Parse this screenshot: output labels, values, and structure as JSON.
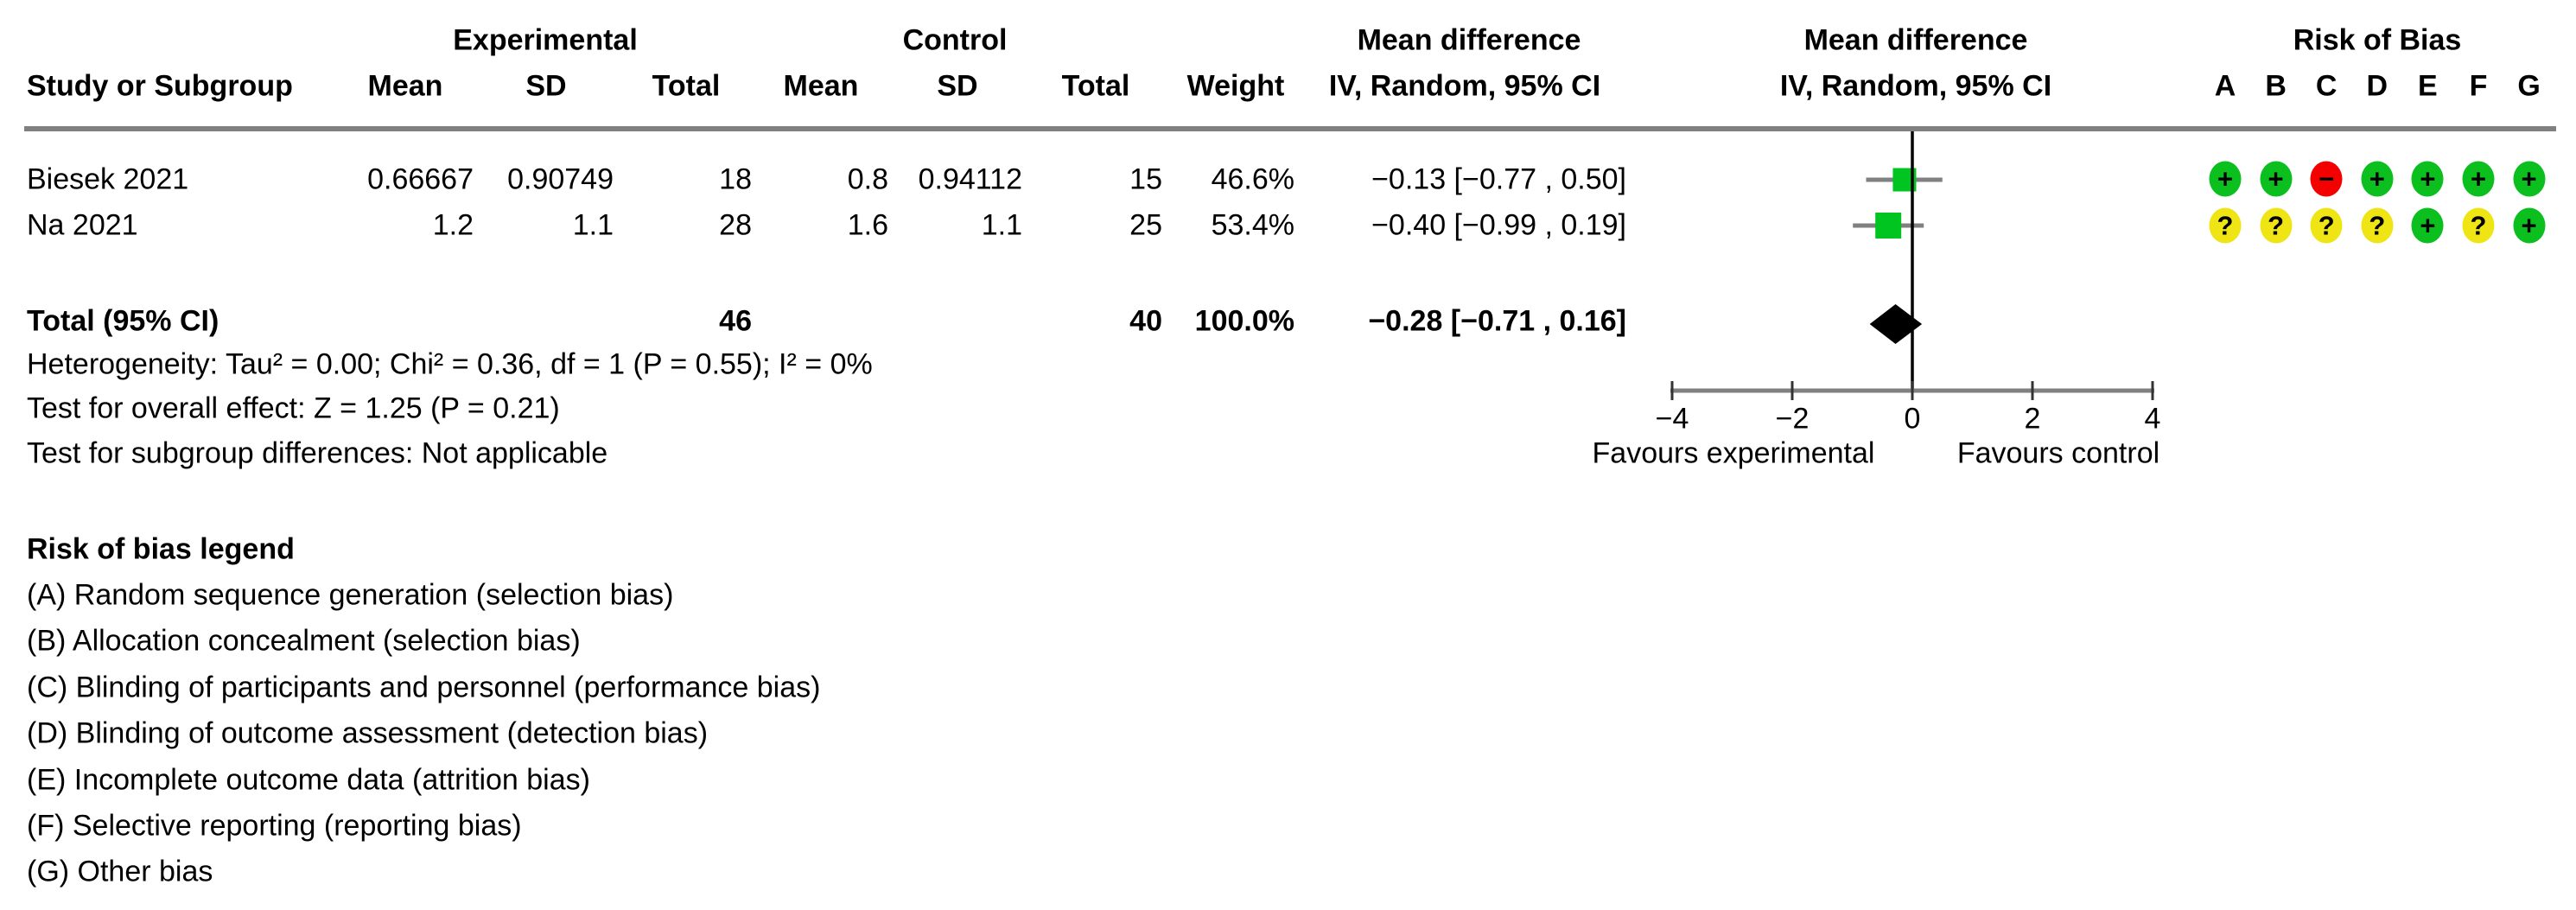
{
  "colors": {
    "square_green": "#00c420",
    "rob_green": "#0abf1e",
    "rob_yellow": "#efe414",
    "rob_red": "#f40000",
    "gray_line": "#808080",
    "tick_dark": "#333333",
    "black": "#000000"
  },
  "header": {
    "experimental": "Experimental",
    "control": "Control",
    "md_text_col": "Mean difference",
    "md_plot_col": "Mean difference",
    "rob_title": "Risk of Bias",
    "study": "Study or Subgroup",
    "mean_exp": "Mean",
    "sd_exp": "SD",
    "total_exp": "Total",
    "mean_ctrl": "Mean",
    "sd_ctrl": "SD",
    "total_ctrl": "Total",
    "weight": "Weight",
    "iv_text_col": "IV, Random, 95% CI",
    "iv_plot_col": "IV, Random, 95% CI",
    "rob_letters": [
      "A",
      "B",
      "C",
      "D",
      "E",
      "F",
      "G"
    ]
  },
  "studies": [
    {
      "name": "Biesek 2021",
      "exp_mean": "0.66667",
      "exp_sd": "0.90749",
      "exp_total": "18",
      "ctrl_mean": "0.8",
      "ctrl_sd": "0.94112",
      "ctrl_total": "15",
      "weight": "46.6%",
      "ci_text": "−0.13 [−0.77 , 0.50]",
      "rob": [
        "+",
        "+",
        "−",
        "+",
        "+",
        "+",
        "+"
      ]
    },
    {
      "name": "Na 2021",
      "exp_mean": "1.2",
      "exp_sd": "1.1",
      "exp_total": "28",
      "ctrl_mean": "1.6",
      "ctrl_sd": "1.1",
      "ctrl_total": "25",
      "weight": "53.4%",
      "ci_text": "−0.40 [−0.99 , 0.19]",
      "rob": [
        "?",
        "?",
        "?",
        "?",
        "+",
        "?",
        "+"
      ]
    }
  ],
  "total_row": {
    "label": "Total (95% CI)",
    "exp_total": "46",
    "ctrl_total": "40",
    "weight": "100.0%",
    "ci_text": "−0.28 [−0.71 , 0.16]"
  },
  "stats": {
    "heterogeneity": "Heterogeneity: Tau² = 0.00; Chi² = 0.36, df = 1 (P = 0.55); I² = 0%",
    "overall_effect": "Test for overall effect: Z = 1.25 (P = 0.21)",
    "subgroup": "Test for subgroup differences: Not applicable"
  },
  "axis": {
    "tick_labels": [
      "−4",
      "−2",
      "0",
      "2",
      "4"
    ],
    "favours_left": "Favours experimental",
    "favours_right": "Favours control"
  },
  "legend": {
    "title": "Risk of bias legend",
    "lines": [
      "(A) Random sequence generation (selection bias)",
      "(B) Allocation concealment (selection bias)",
      "(C) Blinding of participants and personnel (performance bias)",
      "(D) Blinding of outcome assessment (detection bias)",
      "(E) Incomplete outcome data (attrition bias)",
      "(F) Selective reporting (reporting bias)",
      "(G) Other bias"
    ]
  },
  "chart_data": {
    "type": "forest",
    "title": "Mean difference, IV, Random, 95% CI",
    "effect_measure": "Mean difference",
    "model": "IV, Random, 95% CI",
    "xlim": [
      -4,
      4
    ],
    "x_ticks": [
      -4,
      -2,
      0,
      2,
      4
    ],
    "xlabel_left": "Favours experimental",
    "xlabel_right": "Favours control",
    "studies": [
      {
        "name": "Biesek 2021",
        "md": -0.13,
        "ci": [
          -0.77,
          0.5
        ],
        "weight_pct": 46.6
      },
      {
        "name": "Na 2021",
        "md": -0.4,
        "ci": [
          -0.99,
          0.19
        ],
        "weight_pct": 53.4
      }
    ],
    "total": {
      "name": "Total (95% CI)",
      "md": -0.28,
      "ci": [
        -0.71,
        0.16
      ],
      "weight_pct": 100.0
    },
    "heterogeneity": {
      "tau2": 0.0,
      "chi2": 0.36,
      "df": 1,
      "p": 0.55,
      "i2_pct": 0
    },
    "overall_effect": {
      "z": 1.25,
      "p": 0.21
    }
  }
}
